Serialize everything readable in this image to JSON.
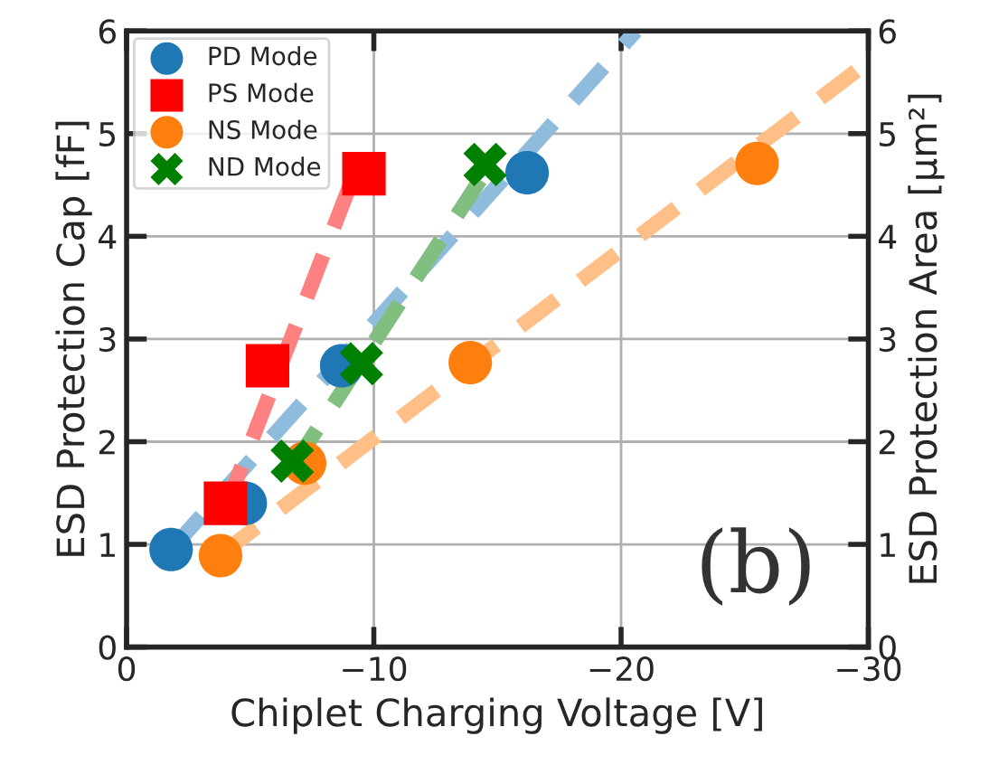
{
  "chart_data": {
    "type": "scatter",
    "xlabel": "Chiplet Charging Voltage [V]",
    "ylabel": "ESD Protection Cap [fF]",
    "y2label": "ESD Protection Area [μm²]",
    "xlim": [
      0,
      -30
    ],
    "xticks": [
      0,
      -10,
      -20,
      -30
    ],
    "ylim": [
      0,
      6
    ],
    "yticks": [
      0,
      1,
      2,
      3,
      4,
      5,
      6
    ],
    "y2lim": [
      0,
      6
    ],
    "y2ticks": [
      0,
      1,
      2,
      3,
      4,
      5,
      6
    ],
    "grid": true,
    "legend": "top left",
    "annotations": [
      "(b)"
    ],
    "series": [
      {
        "type": "line",
        "line_style": "dashed",
        "marker": "none",
        "color": "#8fbcdd",
        "x": [
          -1.8,
          -20.6
        ],
        "values": [
          0.95,
          6
        ]
      },
      {
        "type": "line",
        "line_style": "dashed",
        "marker": "none",
        "color": "#ff8080",
        "x": [
          -4.0,
          -9.2
        ],
        "values": [
          1.35,
          4.6
        ]
      },
      {
        "type": "line",
        "line_style": "dashed",
        "marker": "none",
        "color": "#ffbf86",
        "x": [
          -3.8,
          -30
        ],
        "values": [
          0.9,
          5.7
        ]
      },
      {
        "type": "line",
        "line_style": "dashed",
        "marker": "none",
        "color": "#80bf80",
        "x": [
          -6.7,
          -14.3
        ],
        "values": [
          1.75,
          4.55
        ]
      },
      {
        "name": "PD Mode",
        "marker": "circle",
        "color": "#1f77b4",
        "x": [
          -1.8,
          -4.8,
          -8.7,
          -16.2
        ],
        "values": [
          0.95,
          1.4,
          2.74,
          4.62
        ]
      },
      {
        "name": "PS Mode",
        "marker": "square",
        "color": "#ff0000",
        "x": [
          -4.0,
          -5.7,
          -9.6
        ],
        "values": [
          1.4,
          2.74,
          4.61
        ]
      },
      {
        "name": "NS Mode",
        "marker": "circle",
        "color": "#ff7f0e",
        "x": [
          -3.8,
          -7.2,
          -13.9,
          -25.5
        ],
        "values": [
          0.89,
          1.79,
          2.77,
          4.71
        ]
      },
      {
        "name": "ND Mode",
        "marker": "cross",
        "color": "#008000",
        "x": [
          -6.7,
          -9.5,
          -14.5
        ],
        "values": [
          1.81,
          2.76,
          4.7
        ]
      }
    ]
  }
}
